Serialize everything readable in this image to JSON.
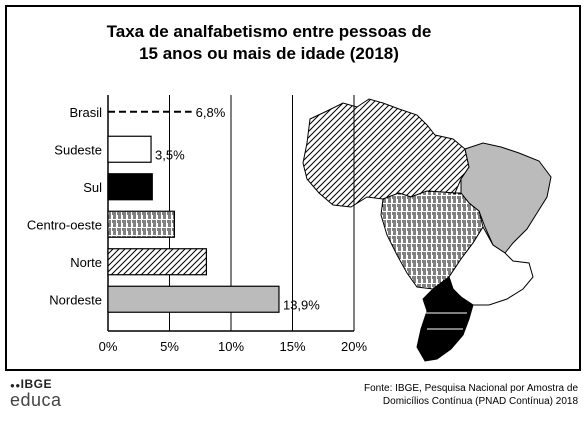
{
  "chart_data": {
    "type": "bar",
    "orientation": "horizontal",
    "title_line1": "Taxa de analfabetismo entre pessoas de",
    "title_line2": "15 anos ou mais de idade (2018)",
    "categories": [
      "Brasil",
      "Sudeste",
      "Sul",
      "Centro-oeste",
      "Norte",
      "Nordeste"
    ],
    "values": [
      6.8,
      3.5,
      3.6,
      5.4,
      8.0,
      13.9
    ],
    "data_labels": [
      "6,8%",
      "3,5%",
      "",
      "",
      "",
      "13,9%"
    ],
    "bar_styles": [
      "dashed-line",
      "white",
      "black",
      "brick-pattern",
      "diagonal-hatch",
      "gray"
    ],
    "xlim": [
      0,
      20
    ],
    "xticks": [
      "0%",
      "5%",
      "10%",
      "15%",
      "20%"
    ],
    "grid": "vertical",
    "legend": "map-of-regions"
  },
  "source": {
    "line1": "Fonte: IBGE, Pesquisa Nacional por Amostra de",
    "line2": "Domicílios Contínua (PNAD Contínua) 2018"
  },
  "logo": {
    "line1": "IBGE",
    "line2": "educa"
  }
}
